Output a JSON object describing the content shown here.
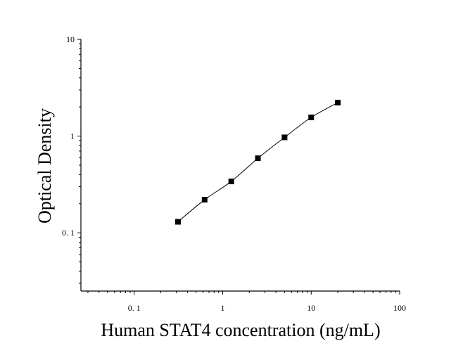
{
  "chart_data": {
    "type": "scatter",
    "xlabel": "Human STAT4 concentration (ng/mL)",
    "ylabel": "Optical Density",
    "xscale": "log",
    "yscale": "log",
    "xlim": [
      0.025,
      100
    ],
    "ylim": [
      0.025,
      10
    ],
    "x_ticks": [
      {
        "value": 0.1,
        "label": "0. 1"
      },
      {
        "value": 1,
        "label": "1"
      },
      {
        "value": 10,
        "label": "10"
      },
      {
        "value": 100,
        "label": "100"
      }
    ],
    "y_ticks": [
      {
        "value": 0.1,
        "label": "0. 1"
      },
      {
        "value": 1,
        "label": "1"
      },
      {
        "value": 10,
        "label": "10"
      }
    ],
    "series": [
      {
        "x": [
          0.3125,
          0.625,
          1.25,
          2.5,
          5,
          10,
          20
        ],
        "y": [
          0.13,
          0.22,
          0.34,
          0.59,
          0.97,
          1.56,
          2.22
        ]
      }
    ],
    "fit_line": true,
    "grid": false,
    "legend": "none",
    "colors": {
      "marker": "#000000",
      "line": "#000000"
    }
  }
}
